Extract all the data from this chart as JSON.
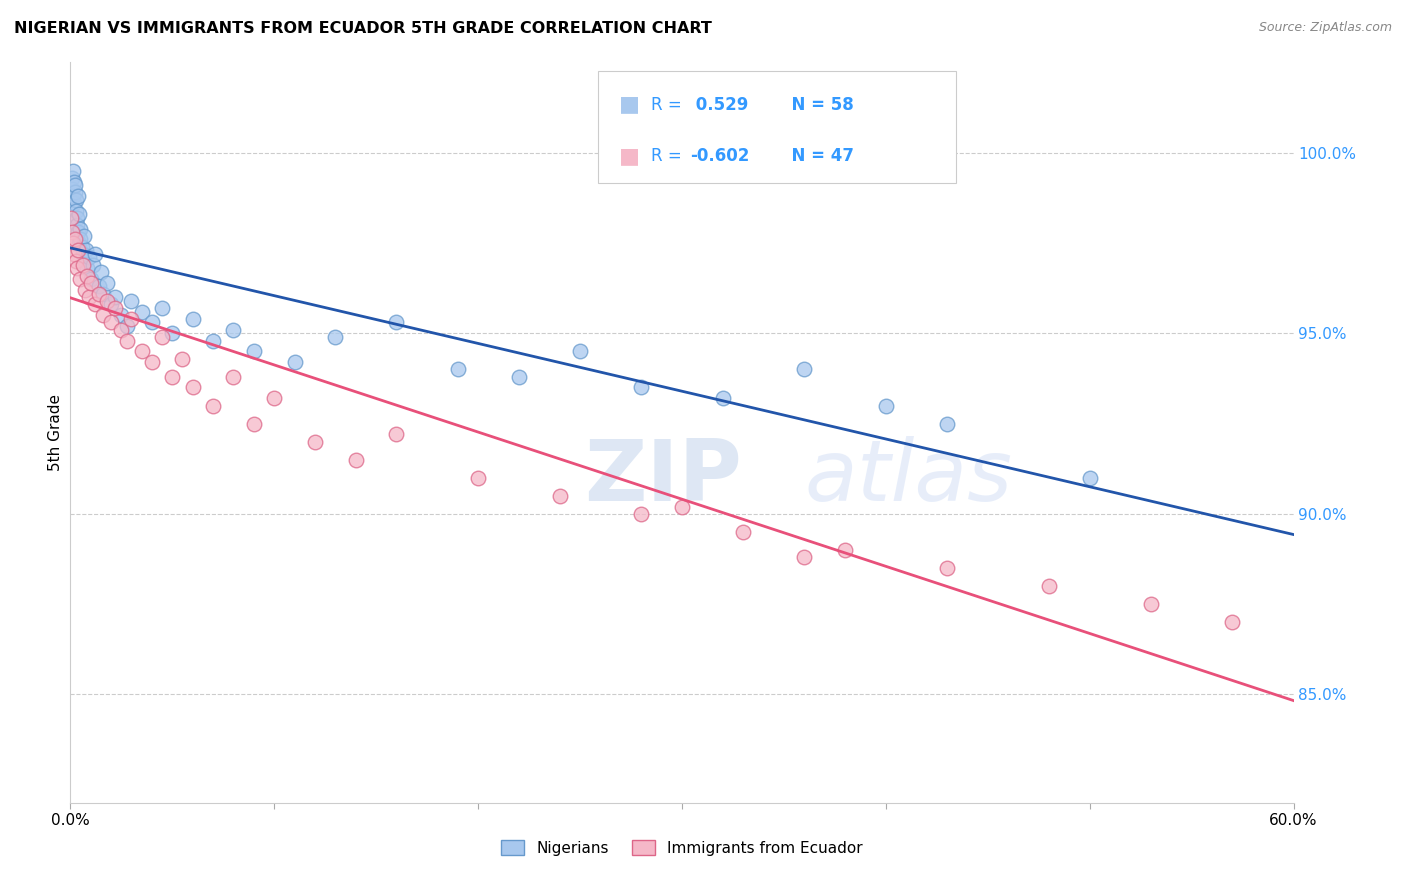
{
  "title": "NIGERIAN VS IMMIGRANTS FROM ECUADOR 5TH GRADE CORRELATION CHART",
  "source": "Source: ZipAtlas.com",
  "ylabel": "5th Grade",
  "right_yticks": [
    85.0,
    90.0,
    95.0,
    100.0
  ],
  "right_ytick_labels": [
    "85.0%",
    "90.0%",
    "95.0%",
    "100.0%"
  ],
  "blue_R": 0.529,
  "blue_N": 58,
  "pink_R": -0.602,
  "pink_N": 47,
  "xlim": [
    0.0,
    60.0
  ],
  "ylim": [
    82.0,
    102.5
  ],
  "blue_color": "#a8c8ee",
  "pink_color": "#f5b8c8",
  "blue_line_color": "#2255aa",
  "pink_line_color": "#e8507a",
  "right_axis_color": "#3399ff",
  "blue_scatter_x": [
    0.05,
    0.08,
    0.1,
    0.12,
    0.15,
    0.18,
    0.2,
    0.22,
    0.25,
    0.28,
    0.3,
    0.32,
    0.35,
    0.38,
    0.4,
    0.42,
    0.45,
    0.48,
    0.5,
    0.55,
    0.6,
    0.65,
    0.7,
    0.75,
    0.8,
    0.9,
    1.0,
    1.1,
    1.2,
    1.4,
    1.5,
    1.6,
    1.8,
    2.0,
    2.2,
    2.5,
    2.8,
    3.0,
    3.5,
    4.0,
    4.5,
    5.0,
    6.0,
    7.0,
    8.0,
    9.0,
    11.0,
    13.0,
    16.0,
    19.0,
    22.0,
    25.0,
    28.0,
    32.0,
    36.0,
    40.0,
    43.0,
    50.0
  ],
  "blue_scatter_y": [
    98.5,
    99.3,
    99.0,
    98.8,
    99.5,
    99.2,
    98.6,
    98.9,
    99.1,
    98.7,
    98.4,
    98.2,
    98.0,
    98.8,
    97.8,
    97.5,
    98.3,
    97.9,
    97.6,
    97.4,
    97.2,
    97.7,
    97.0,
    97.3,
    96.8,
    97.1,
    96.5,
    96.9,
    97.2,
    96.3,
    96.7,
    96.1,
    96.4,
    95.8,
    96.0,
    95.5,
    95.2,
    95.9,
    95.6,
    95.3,
    95.7,
    95.0,
    95.4,
    94.8,
    95.1,
    94.5,
    94.2,
    94.9,
    95.3,
    94.0,
    93.8,
    94.5,
    93.5,
    93.2,
    94.0,
    93.0,
    92.5,
    91.0
  ],
  "pink_scatter_x": [
    0.05,
    0.1,
    0.15,
    0.2,
    0.25,
    0.3,
    0.35,
    0.4,
    0.5,
    0.6,
    0.7,
    0.8,
    0.9,
    1.0,
    1.2,
    1.4,
    1.6,
    1.8,
    2.0,
    2.2,
    2.5,
    2.8,
    3.0,
    3.5,
    4.0,
    4.5,
    5.0,
    5.5,
    6.0,
    7.0,
    8.0,
    9.0,
    10.0,
    12.0,
    14.0,
    16.0,
    20.0,
    24.0,
    28.0,
    33.0,
    38.0,
    43.0,
    48.0,
    53.0,
    57.0,
    30.0,
    36.0
  ],
  "pink_scatter_y": [
    98.2,
    97.8,
    97.5,
    97.2,
    97.6,
    97.0,
    96.8,
    97.3,
    96.5,
    96.9,
    96.2,
    96.6,
    96.0,
    96.4,
    95.8,
    96.1,
    95.5,
    95.9,
    95.3,
    95.7,
    95.1,
    94.8,
    95.4,
    94.5,
    94.2,
    94.9,
    93.8,
    94.3,
    93.5,
    93.0,
    93.8,
    92.5,
    93.2,
    92.0,
    91.5,
    92.2,
    91.0,
    90.5,
    90.0,
    89.5,
    89.0,
    88.5,
    88.0,
    87.5,
    87.0,
    90.2,
    88.8
  ],
  "legend_blue_label_R": "R = ",
  "legend_blue_R_val": " 0.529",
  "legend_blue_N": "N = 58",
  "legend_pink_label_R": "R = ",
  "legend_pink_R_val": "-0.602",
  "legend_pink_N": "N = 47"
}
